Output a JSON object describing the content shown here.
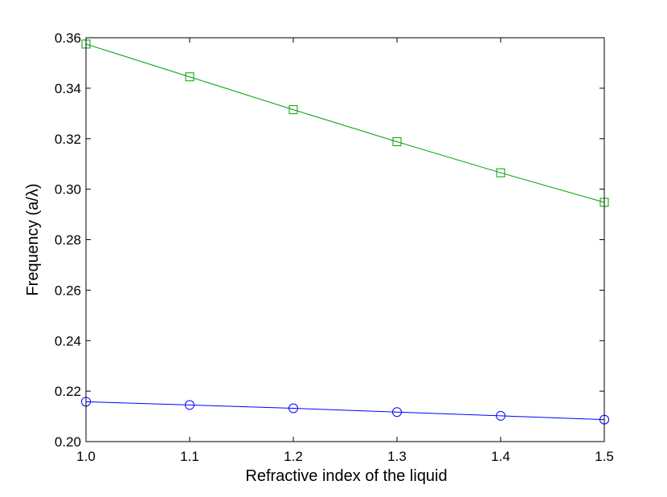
{
  "chart_data": {
    "type": "line",
    "xlabel": "Refractive index of the liquid",
    "ylabel": "Frequency (a/λ)",
    "xlim": [
      1.0,
      1.5
    ],
    "ylim": [
      0.2,
      0.36
    ],
    "x": [
      1.0,
      1.1,
      1.2,
      1.3,
      1.4,
      1.5
    ],
    "x_ticks": [
      "1.0",
      "1.1",
      "1.2",
      "1.3",
      "1.4",
      "1.5"
    ],
    "y_ticks": [
      "0.20",
      "0.22",
      "0.24",
      "0.26",
      "0.28",
      "0.30",
      "0.32",
      "0.34",
      "0.36"
    ],
    "grid": false,
    "series": [
      {
        "marker": "square",
        "color": "#00a000",
        "values": [
          0.3575,
          0.3445,
          0.3315,
          0.3188,
          0.3065,
          0.2948
        ]
      },
      {
        "marker": "circle",
        "color": "#0000ff",
        "values": [
          0.2158,
          0.2145,
          0.2132,
          0.2117,
          0.2102,
          0.2087
        ]
      }
    ]
  }
}
